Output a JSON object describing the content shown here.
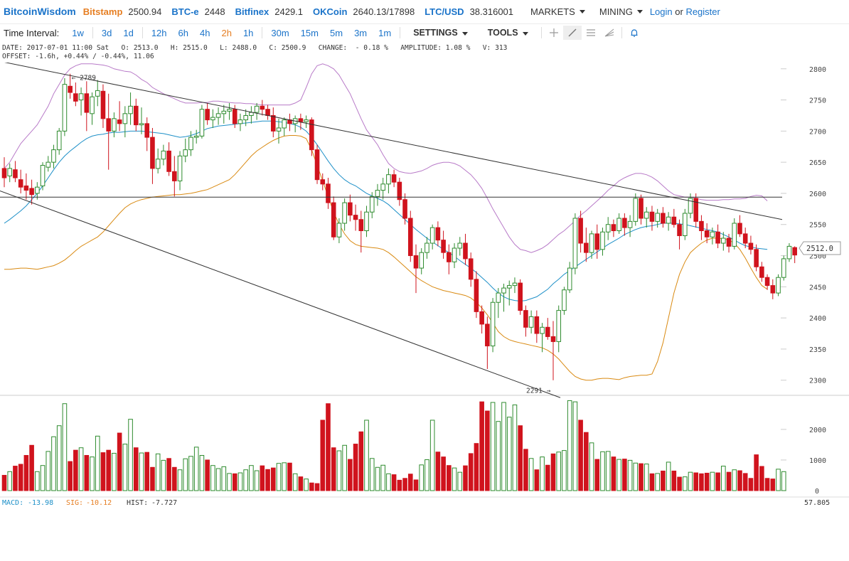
{
  "header": {
    "brand": "BitcoinWisdom",
    "markets": [
      {
        "name": "Bitstamp",
        "price": "2500.94",
        "active": true
      },
      {
        "name": "BTC-e",
        "price": "2448",
        "active": false
      },
      {
        "name": "Bitfinex",
        "price": "2429.1",
        "active": false
      },
      {
        "name": "OKCoin",
        "price": "2640.13/17898",
        "active": false
      },
      {
        "name": "LTC/USD",
        "price": "38.316001",
        "active": false
      }
    ],
    "markets_menu": "MARKETS",
    "mining_menu": "MINING",
    "login": "Login",
    "or": "or",
    "register": "Register"
  },
  "toolbar": {
    "label": "Time Interval:",
    "intervals": [
      "1w",
      "3d",
      "1d",
      "12h",
      "6h",
      "4h",
      "2h",
      "1h",
      "30m",
      "15m",
      "5m",
      "3m",
      "1m"
    ],
    "active_interval": "2h",
    "settings": "SETTINGS",
    "tools": "TOOLS"
  },
  "info": {
    "line1": "DATE: 2017-07-01 11:00 Sat   O: 2513.0   H: 2515.0   L: 2488.0   C: 2500.9   CHANGE:  - 0.18 %   AMPLITUDE: 1.08 %   V: 313",
    "line2": "OFFSET: -1.6h, +0.44% / -0.44%, 11.06"
  },
  "chart_data": {
    "type": "candlestick",
    "price_ticks": [
      "2800",
      "2750",
      "2700",
      "2650",
      "2600",
      "2550",
      "2500",
      "2450",
      "2400",
      "2350",
      "2300"
    ],
    "volume_ticks": [
      "2000",
      "1000",
      "0"
    ],
    "ylim": [
      2278,
      2810
    ],
    "volume_ylim": [
      0,
      2880
    ],
    "current_price": "2512.0",
    "high_marker": "2789",
    "low_marker": "2291",
    "horizontal_line": 2594,
    "trendlines": [
      {
        "from": [
          0,
          2812
        ],
        "to": [
          1100,
          2558
        ]
      },
      {
        "from": [
          0,
          2604
        ],
        "to": [
          788,
          2272
        ]
      }
    ],
    "candles_ohlc": [
      [
        2640,
        2658,
        2610,
        2625
      ],
      [
        2628,
        2648,
        2618,
        2640
      ],
      [
        2638,
        2652,
        2618,
        2625
      ],
      [
        2622,
        2638,
        2600,
        2610
      ],
      [
        2612,
        2632,
        2590,
        2605
      ],
      [
        2608,
        2622,
        2582,
        2598
      ],
      [
        2600,
        2618,
        2590,
        2610
      ],
      [
        2612,
        2650,
        2605,
        2645
      ],
      [
        2642,
        2660,
        2635,
        2650
      ],
      [
        2650,
        2678,
        2640,
        2670
      ],
      [
        2670,
        2705,
        2662,
        2700
      ],
      [
        2700,
        2785,
        2692,
        2775
      ],
      [
        2772,
        2792,
        2752,
        2762
      ],
      [
        2760,
        2778,
        2740,
        2748
      ],
      [
        2750,
        2770,
        2725,
        2760
      ],
      [
        2760,
        2780,
        2700,
        2730
      ],
      [
        2728,
        2762,
        2710,
        2755
      ],
      [
        2756,
        2782,
        2740,
        2765
      ],
      [
        2764,
        2775,
        2705,
        2720
      ],
      [
        2720,
        2760,
        2638,
        2700
      ],
      [
        2700,
        2730,
        2690,
        2720
      ],
      [
        2718,
        2748,
        2700,
        2712
      ],
      [
        2712,
        2740,
        2690,
        2728
      ],
      [
        2728,
        2762,
        2710,
        2740
      ],
      [
        2740,
        2752,
        2700,
        2710
      ],
      [
        2710,
        2738,
        2695,
        2712
      ],
      [
        2712,
        2722,
        2668,
        2690
      ],
      [
        2690,
        2705,
        2615,
        2640
      ],
      [
        2640,
        2672,
        2632,
        2655
      ],
      [
        2655,
        2678,
        2645,
        2668
      ],
      [
        2668,
        2682,
        2628,
        2635
      ],
      [
        2635,
        2660,
        2595,
        2620
      ],
      [
        2620,
        2668,
        2605,
        2660
      ],
      [
        2660,
        2688,
        2650,
        2670
      ],
      [
        2670,
        2700,
        2660,
        2690
      ],
      [
        2690,
        2702,
        2680,
        2692
      ],
      [
        2692,
        2742,
        2688,
        2735
      ],
      [
        2735,
        2745,
        2710,
        2718
      ],
      [
        2718,
        2735,
        2705,
        2722
      ],
      [
        2722,
        2738,
        2710,
        2728
      ],
      [
        2728,
        2742,
        2712,
        2732
      ],
      [
        2732,
        2745,
        2718,
        2735
      ],
      [
        2735,
        2742,
        2705,
        2712
      ],
      [
        2712,
        2728,
        2700,
        2718
      ],
      [
        2718,
        2735,
        2708,
        2725
      ],
      [
        2725,
        2740,
        2712,
        2730
      ],
      [
        2730,
        2745,
        2718,
        2740
      ],
      [
        2740,
        2750,
        2725,
        2735
      ],
      [
        2735,
        2742,
        2718,
        2725
      ],
      [
        2725,
        2738,
        2690,
        2700
      ],
      [
        2700,
        2720,
        2680,
        2705
      ],
      [
        2705,
        2722,
        2692,
        2718
      ],
      [
        2718,
        2728,
        2700,
        2712
      ],
      [
        2712,
        2725,
        2698,
        2720
      ],
      [
        2720,
        2728,
        2702,
        2715
      ],
      [
        2715,
        2725,
        2705,
        2718
      ],
      [
        2718,
        2722,
        2660,
        2670
      ],
      [
        2670,
        2678,
        2615,
        2622
      ],
      [
        2622,
        2632,
        2605,
        2615
      ],
      [
        2615,
        2625,
        2575,
        2585
      ],
      [
        2585,
        2595,
        2525,
        2530
      ],
      [
        2530,
        2560,
        2520,
        2552
      ],
      [
        2552,
        2592,
        2540,
        2585
      ],
      [
        2585,
        2598,
        2555,
        2565
      ],
      [
        2565,
        2582,
        2540,
        2558
      ],
      [
        2558,
        2572,
        2505,
        2540
      ],
      [
        2540,
        2580,
        2530,
        2570
      ],
      [
        2570,
        2602,
        2560,
        2595
      ],
      [
        2595,
        2615,
        2580,
        2605
      ],
      [
        2605,
        2625,
        2590,
        2615
      ],
      [
        2615,
        2640,
        2600,
        2630
      ],
      [
        2630,
        2638,
        2610,
        2618
      ],
      [
        2618,
        2625,
        2580,
        2590
      ],
      [
        2590,
        2600,
        2550,
        2560
      ],
      [
        2560,
        2572,
        2490,
        2500
      ],
      [
        2500,
        2518,
        2440,
        2480
      ],
      [
        2480,
        2512,
        2470,
        2505
      ],
      [
        2505,
        2530,
        2495,
        2520
      ],
      [
        2520,
        2550,
        2510,
        2545
      ],
      [
        2545,
        2555,
        2515,
        2525
      ],
      [
        2525,
        2540,
        2495,
        2505
      ],
      [
        2505,
        2518,
        2470,
        2490
      ],
      [
        2490,
        2520,
        2480,
        2512
      ],
      [
        2512,
        2530,
        2500,
        2520
      ],
      [
        2520,
        2535,
        2485,
        2495
      ],
      [
        2495,
        2505,
        2450,
        2462
      ],
      [
        2462,
        2475,
        2400,
        2410
      ],
      [
        2410,
        2420,
        2375,
        2390
      ],
      [
        2390,
        2402,
        2318,
        2355
      ],
      [
        2355,
        2432,
        2345,
        2425
      ],
      [
        2425,
        2448,
        2400,
        2440
      ],
      [
        2440,
        2455,
        2410,
        2448
      ],
      [
        2448,
        2460,
        2420,
        2452
      ],
      [
        2452,
        2465,
        2440,
        2456
      ],
      [
        2456,
        2462,
        2405,
        2412
      ],
      [
        2412,
        2420,
        2370,
        2385
      ],
      [
        2385,
        2412,
        2375,
        2402
      ],
      [
        2402,
        2412,
        2360,
        2375
      ],
      [
        2375,
        2392,
        2345,
        2385
      ],
      [
        2385,
        2400,
        2365,
        2370
      ],
      [
        2370,
        2395,
        2300,
        2362
      ],
      [
        2362,
        2420,
        2345,
        2412
      ],
      [
        2412,
        2450,
        2405,
        2445
      ],
      [
        2445,
        2490,
        2440,
        2480
      ],
      [
        2480,
        2568,
        2470,
        2560
      ],
      [
        2560,
        2572,
        2505,
        2520
      ],
      [
        2520,
        2545,
        2490,
        2505
      ],
      [
        2505,
        2540,
        2495,
        2535
      ],
      [
        2535,
        2550,
        2495,
        2510
      ],
      [
        2510,
        2545,
        2500,
        2538
      ],
      [
        2538,
        2562,
        2525,
        2550
      ],
      [
        2550,
        2558,
        2530,
        2540
      ],
      [
        2540,
        2568,
        2535,
        2560
      ],
      [
        2560,
        2568,
        2532,
        2545
      ],
      [
        2545,
        2565,
        2530,
        2555
      ],
      [
        2555,
        2600,
        2548,
        2592
      ],
      [
        2592,
        2598,
        2550,
        2560
      ],
      [
        2560,
        2578,
        2545,
        2570
      ],
      [
        2570,
        2580,
        2540,
        2555
      ],
      [
        2555,
        2575,
        2545,
        2568
      ],
      [
        2568,
        2578,
        2545,
        2552
      ],
      [
        2552,
        2570,
        2540,
        2562
      ],
      [
        2562,
        2575,
        2545,
        2550
      ],
      [
        2550,
        2558,
        2510,
        2532
      ],
      [
        2532,
        2575,
        2525,
        2568
      ],
      [
        2568,
        2600,
        2560,
        2592
      ],
      [
        2592,
        2600,
        2545,
        2555
      ],
      [
        2555,
        2565,
        2525,
        2540
      ],
      [
        2540,
        2552,
        2520,
        2530
      ],
      [
        2530,
        2545,
        2518,
        2538
      ],
      [
        2538,
        2550,
        2512,
        2520
      ],
      [
        2520,
        2538,
        2508,
        2528
      ],
      [
        2528,
        2535,
        2505,
        2515
      ],
      [
        2515,
        2560,
        2510,
        2552
      ],
      [
        2552,
        2565,
        2530,
        2535
      ],
      [
        2535,
        2545,
        2512,
        2520
      ],
      [
        2520,
        2532,
        2502,
        2510
      ],
      [
        2510,
        2518,
        2475,
        2482
      ],
      [
        2482,
        2490,
        2458,
        2465
      ],
      [
        2465,
        2470,
        2445,
        2452
      ],
      [
        2452,
        2462,
        2430,
        2440
      ],
      [
        2440,
        2470,
        2435,
        2465
      ],
      [
        2465,
        2500,
        2460,
        2495
      ],
      [
        2495,
        2520,
        2490,
        2515
      ],
      [
        2513,
        2515,
        2488,
        2501
      ]
    ],
    "ma_blue": [
      2552,
      2558,
      2565,
      2572,
      2580,
      2590,
      2600,
      2612,
      2625,
      2638,
      2650,
      2660,
      2668,
      2675,
      2682,
      2688,
      2692,
      2694,
      2695,
      2697,
      2698,
      2698,
      2699,
      2700,
      2700,
      2700,
      2699,
      2698,
      2697,
      2696,
      2694,
      2692,
      2690,
      2691,
      2693,
      2696,
      2700,
      2704,
      2706,
      2708,
      2709,
      2710,
      2711,
      2712,
      2713,
      2714,
      2715,
      2716,
      2716,
      2716,
      2715,
      2714,
      2712,
      2710,
      2706,
      2700,
      2690,
      2678,
      2665,
      2652,
      2640,
      2630,
      2622,
      2616,
      2612,
      2606,
      2600,
      2596,
      2592,
      2588,
      2582,
      2574,
      2566,
      2558,
      2550,
      2542,
      2535,
      2528,
      2522,
      2516,
      2510,
      2505,
      2499,
      2492,
      2486,
      2480,
      2473,
      2465,
      2457,
      2448,
      2440,
      2434,
      2430,
      2428,
      2427,
      2428,
      2431,
      2434,
      2440,
      2446,
      2455,
      2462,
      2470,
      2476,
      2482,
      2488,
      2494,
      2500,
      2506,
      2512,
      2518,
      2523,
      2528,
      2534,
      2538,
      2542,
      2545,
      2547,
      2548,
      2550,
      2552,
      2552,
      2552,
      2551,
      2550,
      2548,
      2546,
      2544,
      2542,
      2540,
      2538,
      2534,
      2530,
      2525,
      2520,
      2516,
      2514,
      2512,
      2511,
      2510
    ],
    "ma_orange": [
      2478,
      2478,
      2479,
      2480,
      2480,
      2479,
      2478,
      2480,
      2482,
      2484,
      2488,
      2493,
      2500,
      2508,
      2515,
      2520,
      2525,
      2530,
      2538,
      2548,
      2558,
      2568,
      2577,
      2583,
      2587,
      2590,
      2592,
      2594,
      2595,
      2596,
      2597,
      2598,
      2598,
      2599,
      2600,
      2602,
      2604,
      2606,
      2610,
      2614,
      2618,
      2622,
      2630,
      2640,
      2650,
      2660,
      2668,
      2674,
      2680,
      2685,
      2689,
      2692,
      2693,
      2693,
      2692,
      2688,
      2670,
      2645,
      2620,
      2595,
      2570,
      2550,
      2535,
      2524,
      2518,
      2515,
      2514,
      2513,
      2512,
      2510,
      2505,
      2498,
      2490,
      2482,
      2474,
      2466,
      2460,
      2455,
      2450,
      2447,
      2444,
      2442,
      2440,
      2438,
      2436,
      2432,
      2425,
      2416,
      2405,
      2392,
      2378,
      2370,
      2365,
      2362,
      2360,
      2358,
      2356,
      2354,
      2352,
      2348,
      2342,
      2334,
      2324,
      2314,
      2306,
      2302,
      2300,
      2300,
      2302,
      2303,
      2303,
      2302,
      2301,
      2304,
      2306,
      2307,
      2308,
      2308,
      2310,
      2330,
      2360,
      2400,
      2440,
      2470,
      2490,
      2505,
      2513,
      2520,
      2525,
      2528,
      2528,
      2527,
      2525,
      2520,
      2510,
      2496,
      2480,
      2465,
      2452,
      2446
    ],
    "band_purple": [
      2640,
      2650,
      2665,
      2680,
      2690,
      2700,
      2710,
      2725,
      2740,
      2760,
      2775,
      2790,
      2800,
      2805,
      2808,
      2808,
      2808,
      2807,
      2806,
      2804,
      2800,
      2798,
      2796,
      2795,
      2790,
      2783,
      2778,
      2770,
      2765,
      2760,
      2756,
      2752,
      2748,
      2745,
      2745,
      2745,
      2746,
      2746,
      2748,
      2748,
      2747,
      2746,
      2745,
      2745,
      2744,
      2744,
      2743,
      2742,
      2742,
      2742,
      2742,
      2742,
      2742,
      2745,
      2750,
      2770,
      2792,
      2805,
      2808,
      2805,
      2800,
      2790,
      2775,
      2760,
      2740,
      2720,
      2702,
      2690,
      2678,
      2662,
      2648,
      2640,
      2635,
      2633,
      2632,
      2634,
      2636,
      2640,
      2645,
      2648,
      2650,
      2650,
      2648,
      2644,
      2637,
      2630,
      2620,
      2608,
      2592,
      2575,
      2560,
      2545,
      2530,
      2518,
      2510,
      2508,
      2505,
      2508,
      2512,
      2518,
      2526,
      2534,
      2540,
      2548,
      2556,
      2565,
      2572,
      2580,
      2588,
      2596,
      2605,
      2612,
      2620,
      2625,
      2629,
      2632,
      2632,
      2630,
      2626,
      2620,
      2612,
      2604,
      2598,
      2596,
      2594,
      2594,
      2592,
      2590,
      2589,
      2589,
      2589,
      2590,
      2590,
      2591,
      2591,
      2592,
      2595,
      2597,
      2596,
      2588
    ],
    "volume": [
      500,
      620,
      800,
      860,
      1150,
      1480,
      620,
      820,
      1280,
      1760,
      2120,
      2840,
      950,
      1320,
      1400,
      1150,
      1100,
      1780,
      1240,
      1320,
      1220,
      1880,
      1520,
      2330,
      1400,
      1230,
      1250,
      760,
      1200,
      990,
      1050,
      760,
      680,
      1040,
      1120,
      1420,
      1150,
      1000,
      820,
      720,
      780,
      560,
      550,
      580,
      680,
      820,
      650,
      810,
      690,
      740,
      890,
      910,
      900,
      550,
      450,
      380,
      250,
      230,
      2300,
      2840,
      1400,
      1300,
      1480,
      1020,
      1520,
      1920,
      2300,
      1050,
      760,
      830,
      550,
      520,
      340,
      400,
      540,
      350,
      840,
      1010,
      2300,
      1260,
      1100,
      820,
      740,
      600,
      810,
      1210,
      1540,
      2900,
      2600,
      2880,
      2260,
      2880,
      2400,
      2800,
      2120,
      1350,
      1050,
      680,
      1100,
      830,
      1200,
      1260,
      1310,
      2940,
      2900,
      2300,
      1900,
      1560,
      1020,
      1270,
      1280,
      1100,
      1020,
      1030,
      990,
      900,
      880,
      870,
      550,
      560,
      640,
      930,
      640,
      440,
      450,
      600,
      580,
      550,
      570,
      600,
      580,
      800,
      600,
      680,
      650,
      560,
      400,
      1170,
      790,
      400,
      380,
      700,
      620
    ],
    "macd_label": "MACD:",
    "macd": "-13.98",
    "sig_label": "SIG:",
    "sig": "-10.12",
    "hist_label": "HIST:",
    "hist": "-7.727",
    "macd_axis_value": "57.805",
    "colors": {
      "up": "#2e8b2e",
      "down": "#d0131d",
      "ma_blue": "#1e90c8",
      "ma_orange": "#d98a12",
      "band": "#b87ac8",
      "line": "#333333"
    }
  }
}
